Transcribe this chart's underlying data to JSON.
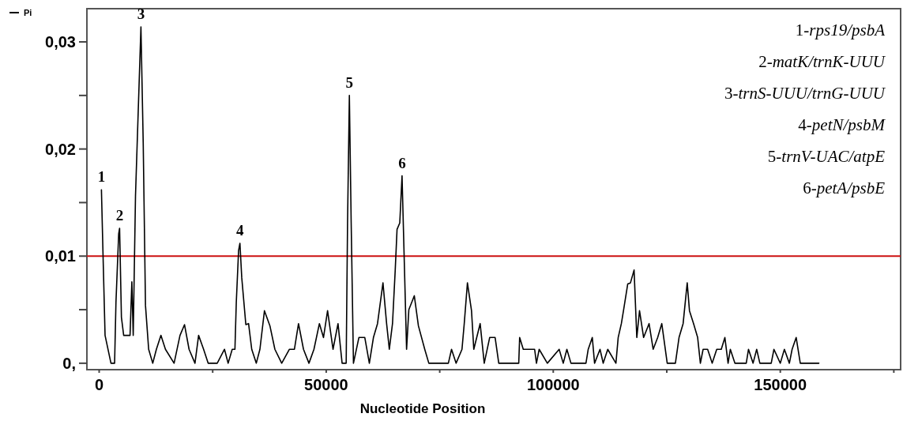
{
  "chart_data": {
    "type": "line",
    "xlabel": "Nucleotide Position",
    "xlim": [
      -2700,
      176500
    ],
    "ylim": [
      -0.0006,
      0.0331
    ],
    "xticks": [
      0,
      {
        "value": 25000,
        "label": null
      },
      50000,
      {
        "value": 75000,
        "label": null
      },
      100000,
      {
        "value": 125000,
        "label": null
      },
      150000,
      {
        "value": 175000,
        "label": null
      }
    ],
    "yticks": [
      {
        "value": 0,
        "label": "0,"
      },
      {
        "value": 0.005,
        "label": null
      },
      {
        "value": 0.01,
        "label": "0,01"
      },
      {
        "value": 0.015,
        "label": null
      },
      {
        "value": 0.02,
        "label": "0,02"
      },
      {
        "value": 0.025,
        "label": null
      },
      {
        "value": 0.03,
        "label": "0,03"
      }
    ],
    "grid": false,
    "legend": "top left",
    "marker": "none",
    "line_style": "solid",
    "ref_lines": [
      {
        "axis": "y",
        "value": 0.01,
        "color": "#cc1111"
      }
    ],
    "annotations": [
      {
        "text": "1",
        "x": 500,
        "y": 0.0162
      },
      {
        "text": "2",
        "x": 4500,
        "y": 0.0126
      },
      {
        "text": "3",
        "x": 9200,
        "y": 0.0314
      },
      {
        "text": "4",
        "x": 31000,
        "y": 0.0112
      },
      {
        "text": "5",
        "x": 55100,
        "y": 0.025
      },
      {
        "text": "6",
        "x": 66700,
        "y": 0.0175
      },
      "1-rps19/psbA",
      "2-matK/trnK-UUU",
      "3-trnS-UUU/trnG-UUU",
      "4-petN/psbM",
      "5-trnV-UAC/atpE",
      "6-petA/psbE"
    ],
    "series": [
      {
        "name": "Pi",
        "color": "#000000",
        "x": [
          500,
          900,
          1300,
          2600,
          3400,
          3700,
          4300,
          4500,
          4900,
          5400,
          6800,
          7200,
          7500,
          8000,
          9200,
          9700,
          10200,
          10900,
          11800,
          12600,
          13600,
          14600,
          16500,
          17800,
          18800,
          19800,
          21100,
          21900,
          23000,
          24000,
          26000,
          27600,
          28400,
          29300,
          29900,
          30200,
          30700,
          31000,
          31400,
          32300,
          32900,
          33600,
          34600,
          35400,
          36400,
          37600,
          38700,
          40200,
          41900,
          43000,
          43900,
          45000,
          46200,
          47300,
          48500,
          49400,
          50300,
          51500,
          52600,
          53500,
          54400,
          54700,
          55100,
          55500,
          56000,
          57200,
          58500,
          59500,
          60400,
          61300,
          62500,
          63300,
          63900,
          64600,
          65200,
          65600,
          66200,
          66700,
          67200,
          67700,
          68200,
          69400,
          70300,
          71700,
          72600,
          76900,
          77600,
          78600,
          79900,
          80400,
          81100,
          82000,
          82500,
          83900,
          84800,
          86000,
          87200,
          88000,
          92400,
          92600,
          93400,
          95900,
          96300,
          96900,
          98700,
          101300,
          102200,
          103000,
          103900,
          107200,
          107700,
          108600,
          109100,
          110300,
          111000,
          112000,
          113800,
          114300,
          115000,
          115500,
          116400,
          117000,
          117800,
          118400,
          119000,
          119900,
          121100,
          122000,
          123000,
          123900,
          125100,
          126900,
          127700,
          128600,
          129500,
          130000,
          130900,
          131800,
          132400,
          133000,
          134000,
          135000,
          136000,
          137000,
          137800,
          138500,
          139000,
          140000,
          142500,
          143000,
          144000,
          144800,
          145500,
          148000,
          148600,
          150000,
          150900,
          152000,
          152600,
          153500,
          154400,
          158500
        ],
        "values": [
          0.0162,
          0.0093,
          0.0026,
          0,
          0,
          0.0057,
          0.0121,
          0.0126,
          0.0043,
          0.0026,
          0.0026,
          0.0076,
          0.0026,
          0.0156,
          0.0314,
          0.0206,
          0.0054,
          0.0013,
          0,
          0.0013,
          0.0026,
          0.0013,
          0,
          0.0026,
          0.0036,
          0.0013,
          0,
          0.0026,
          0.0013,
          0,
          0,
          0.0013,
          0,
          0.0013,
          0.0013,
          0.0057,
          0.0105,
          0.0112,
          0.008,
          0.0036,
          0.0037,
          0.0013,
          0,
          0.0013,
          0.0049,
          0.0035,
          0.0013,
          0,
          0.0013,
          0.0013,
          0.0037,
          0.0013,
          0,
          0.0013,
          0.0037,
          0.0024,
          0.0049,
          0.0013,
          0.0037,
          0,
          0,
          0.0131,
          0.025,
          0.0131,
          0,
          0.0024,
          0.0024,
          0,
          0.0024,
          0.0037,
          0.0075,
          0.0037,
          0.0013,
          0.0037,
          0.0087,
          0.0125,
          0.0131,
          0.0175,
          0.0094,
          0.0013,
          0.005,
          0.0063,
          0.0035,
          0.0013,
          0,
          0,
          0.0013,
          0,
          0.0013,
          0.0037,
          0.0075,
          0.0049,
          0.0013,
          0.0037,
          0,
          0.0024,
          0.0024,
          0,
          0,
          0.0024,
          0.0013,
          0.0013,
          0,
          0.0013,
          0,
          0.0013,
          0,
          0.0013,
          0,
          0,
          0.0013,
          0.0024,
          0,
          0.0013,
          0,
          0.0013,
          0,
          0.0024,
          0.0037,
          0.005,
          0.0074,
          0.0075,
          0.0087,
          0.0024,
          0.0049,
          0.0024,
          0.0037,
          0.0013,
          0.0024,
          0.0037,
          0,
          0,
          0.0024,
          0.0037,
          0.0075,
          0.0049,
          0.0037,
          0.0024,
          0,
          0.0013,
          0.0013,
          0,
          0.0013,
          0.0013,
          0.0024,
          0,
          0.0013,
          0,
          0,
          0.0013,
          0,
          0.0013,
          0,
          0,
          0.0013,
          0,
          0.0013,
          0,
          0.0013,
          0.0024,
          0,
          0
        ]
      }
    ]
  }
}
